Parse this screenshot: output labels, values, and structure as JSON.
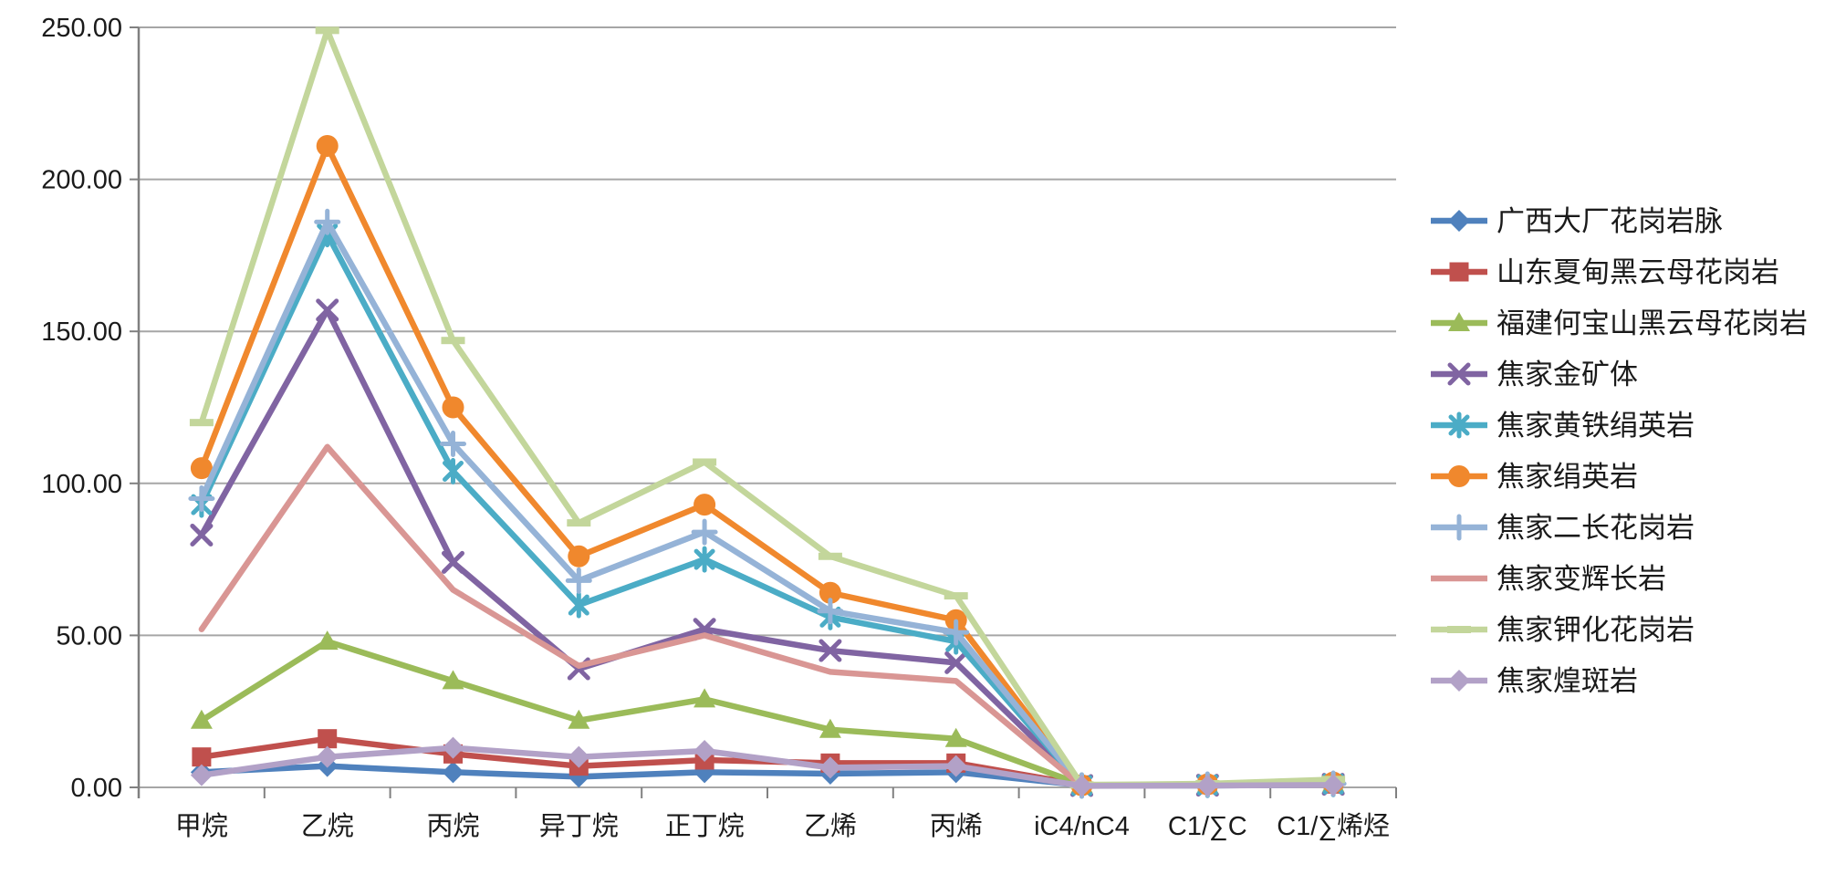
{
  "chart_data": {
    "type": "line",
    "title": "",
    "xlabel": "",
    "ylabel": "",
    "ylim": [
      0,
      250
    ],
    "ytick_step": 50,
    "ytick_labels": [
      "0.00",
      "50.00",
      "100.00",
      "150.00",
      "200.00",
      "250.00"
    ],
    "grid": true,
    "legend_position": "right",
    "categories": [
      "甲烷",
      "乙烷",
      "丙烷",
      "异丁烷",
      "正丁烷",
      "乙烯",
      "丙烯",
      "iC4/nC4",
      "C1/∑C",
      "C1/∑烯烃"
    ],
    "series": [
      {
        "name": "广西大厂花岗岩脉",
        "color": "#4F81BD",
        "marker": "diamond",
        "values": [
          5,
          7,
          5,
          3.5,
          5,
          4.5,
          5,
          0.7,
          0.6,
          0.9
        ]
      },
      {
        "name": "山东夏甸黑云母花岗岩",
        "color": "#C0504D",
        "marker": "square",
        "values": [
          10,
          16,
          11,
          7,
          9,
          8,
          8,
          0.8,
          0.9,
          1.1
        ]
      },
      {
        "name": "福建何宝山黑云母花岗岩",
        "color": "#9BBB59",
        "marker": "triangle",
        "values": [
          22,
          48,
          35,
          22,
          29,
          19,
          16,
          0.9,
          0.8,
          1.3
        ]
      },
      {
        "name": "焦家金矿体",
        "color": "#8064A2",
        "marker": "x",
        "values": [
          83,
          157,
          74,
          39,
          52,
          45,
          41,
          0.6,
          0.7,
          1.0
        ]
      },
      {
        "name": "焦家黄铁绢英岩",
        "color": "#4BACC6",
        "marker": "asterisk",
        "values": [
          93,
          182,
          104,
          60,
          75,
          56,
          48,
          0.6,
          0.8,
          1.1
        ]
      },
      {
        "name": "焦家绢英岩",
        "color": "#F0882D",
        "marker": "circle",
        "values": [
          105,
          211,
          125,
          76,
          93,
          64,
          55,
          0.7,
          1.0,
          1.6
        ]
      },
      {
        "name": "焦家二长花岗岩",
        "color": "#95B3D7",
        "marker": "plus",
        "values": [
          95,
          186,
          113,
          68,
          84,
          58,
          51,
          0.6,
          0.9,
          1.2
        ]
      },
      {
        "name": "焦家变辉长岩",
        "color": "#D99694",
        "marker": "none",
        "values": [
          52,
          112,
          65,
          40,
          50,
          38,
          35,
          0.5,
          0.7,
          0.9
        ]
      },
      {
        "name": "焦家钾化花岗岩",
        "color": "#C3D69B",
        "marker": "dash",
        "values": [
          120,
          249,
          147,
          87,
          107,
          76,
          63,
          0.8,
          1.2,
          2.6
        ]
      },
      {
        "name": "焦家煌斑岩",
        "color": "#B2A1C7",
        "marker": "diamond",
        "values": [
          4,
          10,
          13,
          10,
          12,
          6.5,
          7,
          0.5,
          0.6,
          0.8
        ]
      }
    ],
    "axis_color": "#808080",
    "gridline_color": "#A6A6A6"
  }
}
